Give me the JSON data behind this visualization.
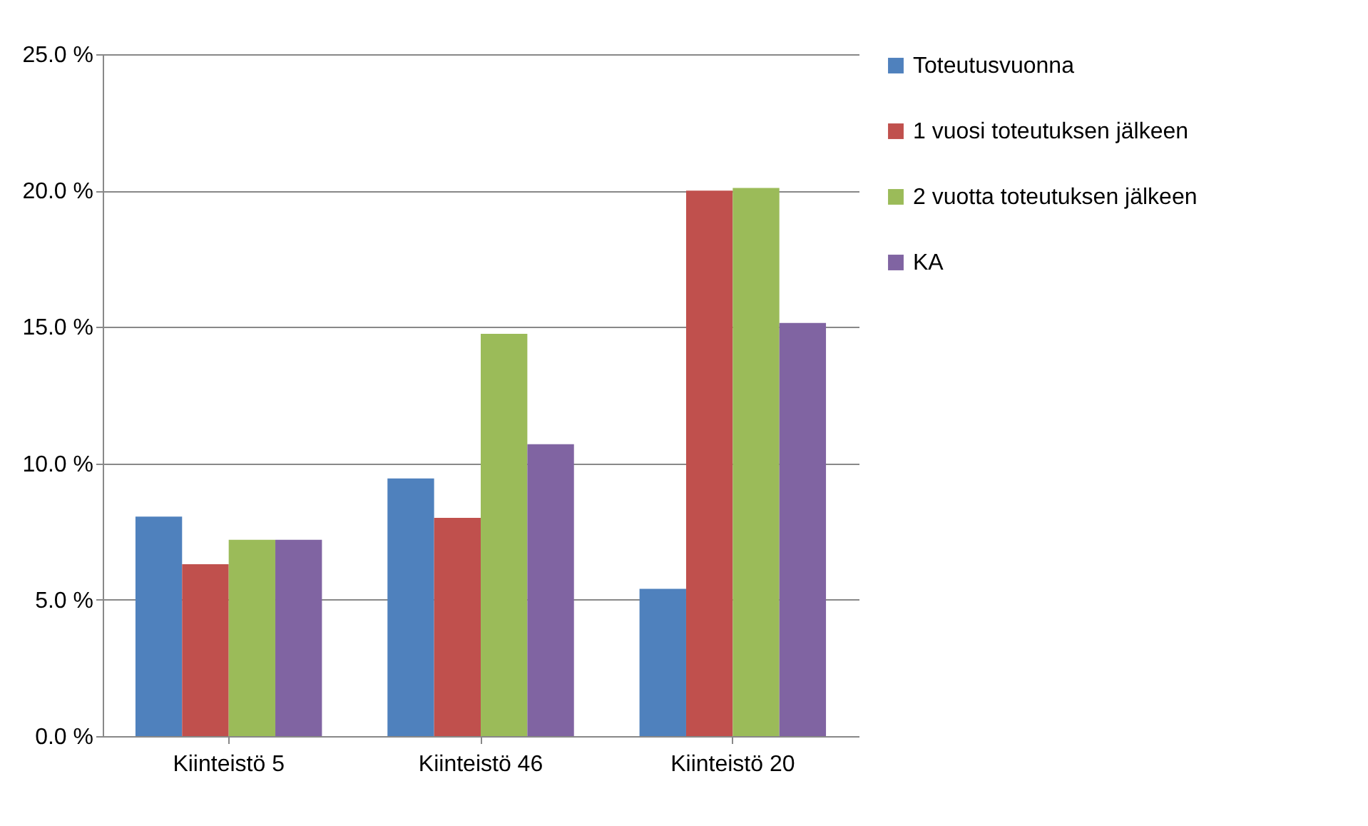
{
  "chart_data": {
    "type": "bar",
    "categories": [
      "Kiinteistö 5",
      "Kiinteistö 46",
      "Kiinteistö 20"
    ],
    "series": [
      {
        "name": "Toteutusvuonna",
        "color": "#4f81bd",
        "values": [
          8.05,
          9.45,
          5.4
        ]
      },
      {
        "name": "1 vuosi toteutuksen jälkeen",
        "color": "#c0504d",
        "values": [
          6.3,
          8.0,
          20.0
        ]
      },
      {
        "name": "2 vuotta toteutuksen jälkeen",
        "color": "#9bbb59",
        "values": [
          7.2,
          14.75,
          20.1
        ]
      },
      {
        "name": "KA",
        "color": "#8064a2",
        "values": [
          7.2,
          10.7,
          15.15
        ]
      }
    ],
    "ylim": [
      0,
      25
    ],
    "yticks": [
      {
        "value": 0,
        "label": "0.0 %"
      },
      {
        "value": 5,
        "label": "5.0 %"
      },
      {
        "value": 10,
        "label": "10.0 %"
      },
      {
        "value": 15,
        "label": "15.0 %"
      },
      {
        "value": 20,
        "label": "20.0 %"
      },
      {
        "value": 25,
        "label": "25.0 %"
      }
    ],
    "grid": "y",
    "legend": "right"
  }
}
